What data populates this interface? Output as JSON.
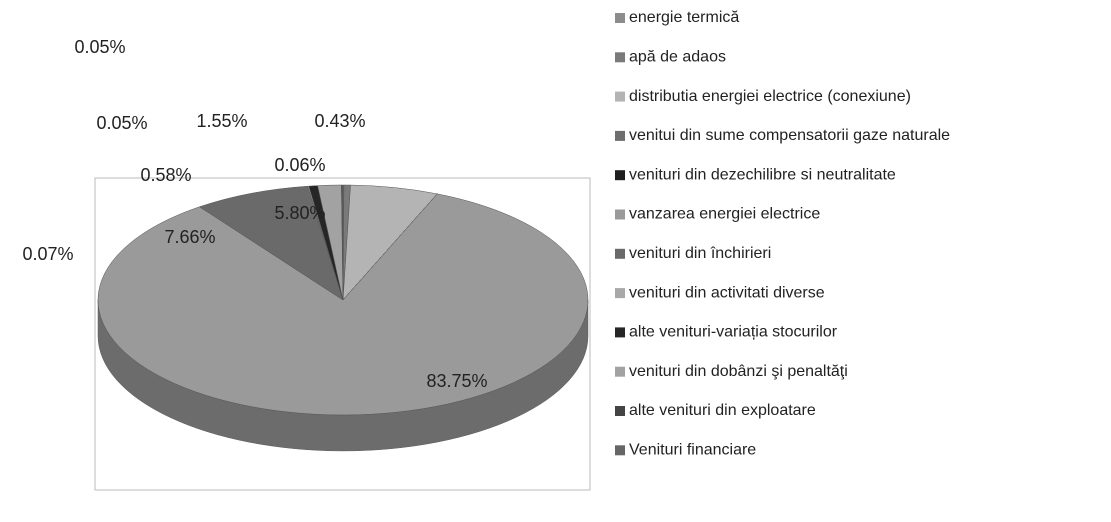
{
  "chart_data": {
    "type": "pie3d",
    "categories": [
      "energie termică",
      "apă de adaos",
      "distributia energiei electrice (conexiune)",
      "venitui din sume compensatorii gaze naturale",
      "venituri din dezechilibre si neutralitate",
      "vanzarea energiei electrice",
      "venituri din închirieri",
      "venituri din activitati diverse",
      "alte venituri-variația stocurilor",
      "venituri din dobânzi şi penaltăţi",
      "alte venituri din exploatare",
      "Venituri financiare"
    ],
    "values": [
      0.06,
      0.43,
      5.8,
      0,
      0,
      83.75,
      7.66,
      0.07,
      0.58,
      1.55,
      0.05,
      0.05
    ],
    "value_labels": [
      "0.06%",
      "0.43%",
      "5.80%",
      null,
      null,
      "83.75%",
      "7.66%",
      "0.07%",
      "0.58%",
      "1.55%",
      "0.05%",
      "0.05%"
    ],
    "colors": [
      "#8c8c8c",
      "#7a7a7a",
      "#b4b4b4",
      "#6e6e6e",
      "#1e1e1e",
      "#9a9a9a",
      "#6a6a6a",
      "#a8a8a8",
      "#262626",
      "#a2a2a2",
      "#444444",
      "#666666"
    ],
    "legend": "right"
  }
}
